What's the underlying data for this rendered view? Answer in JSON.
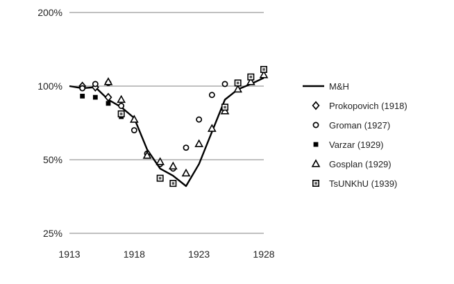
{
  "chart_data": {
    "type": "line",
    "title": "",
    "xlabel": "",
    "ylabel": "",
    "y_scale": "log",
    "xlim": [
      1913,
      1928
    ],
    "ylim": [
      25,
      200
    ],
    "x_ticks": [
      {
        "value": 1913,
        "label": "1913"
      },
      {
        "value": 1918,
        "label": "1918"
      },
      {
        "value": 1923,
        "label": "1923"
      },
      {
        "value": 1928,
        "label": "1928"
      }
    ],
    "y_ticks": [
      {
        "value": 25,
        "label": "25%"
      },
      {
        "value": 50,
        "label": "50%"
      },
      {
        "value": 100,
        "label": "100%"
      },
      {
        "value": 200,
        "label": "200%"
      }
    ],
    "grid": "horizontal",
    "legend_position": "right",
    "series": [
      {
        "name": "M&H",
        "marker": "line",
        "points": [
          [
            1913,
            100
          ],
          [
            1914,
            98
          ],
          [
            1915,
            99
          ],
          [
            1916,
            88
          ],
          [
            1917,
            82
          ],
          [
            1918,
            74
          ],
          [
            1919,
            55
          ],
          [
            1920,
            46
          ],
          [
            1921,
            43
          ],
          [
            1922,
            39
          ],
          [
            1923,
            48
          ],
          [
            1924,
            65
          ],
          [
            1925,
            88
          ],
          [
            1926,
            97
          ],
          [
            1927,
            102
          ],
          [
            1928,
            108
          ]
        ]
      },
      {
        "name": "Prokopovich (1918)",
        "marker": "diamond",
        "points": [
          [
            1914,
            100
          ],
          [
            1915,
            99
          ],
          [
            1916,
            90
          ]
        ]
      },
      {
        "name": "Groman (1927)",
        "marker": "circle",
        "points": [
          [
            1914,
            98
          ],
          [
            1915,
            102
          ],
          [
            1916,
            103
          ],
          [
            1917,
            83
          ],
          [
            1918,
            66
          ],
          [
            1919,
            53
          ],
          [
            1920,
            48
          ],
          [
            1921,
            46
          ],
          [
            1922,
            56
          ],
          [
            1923,
            73
          ],
          [
            1924,
            92
          ],
          [
            1925,
            102
          ]
        ]
      },
      {
        "name": "Varzar (1929)",
        "marker": "square",
        "points": [
          [
            1914,
            91
          ],
          [
            1915,
            90
          ],
          [
            1916,
            85
          ],
          [
            1917,
            75
          ]
        ]
      },
      {
        "name": "Gosplan (1929)",
        "marker": "triangle",
        "points": [
          [
            1916,
            104
          ],
          [
            1917,
            88
          ],
          [
            1918,
            73
          ],
          [
            1919,
            52
          ],
          [
            1920,
            49
          ],
          [
            1921,
            47
          ],
          [
            1922,
            44
          ],
          [
            1923,
            58
          ],
          [
            1924,
            67
          ],
          [
            1925,
            79
          ],
          [
            1926,
            97
          ],
          [
            1927,
            104
          ],
          [
            1928,
            111
          ]
        ]
      },
      {
        "name": "TsUNKhU (1939)",
        "marker": "dotted-square",
        "points": [
          [
            1917,
            77
          ],
          [
            1920,
            42
          ],
          [
            1921,
            40
          ],
          [
            1925,
            82
          ],
          [
            1926,
            103
          ],
          [
            1927,
            109
          ],
          [
            1928,
            117
          ]
        ]
      }
    ]
  }
}
